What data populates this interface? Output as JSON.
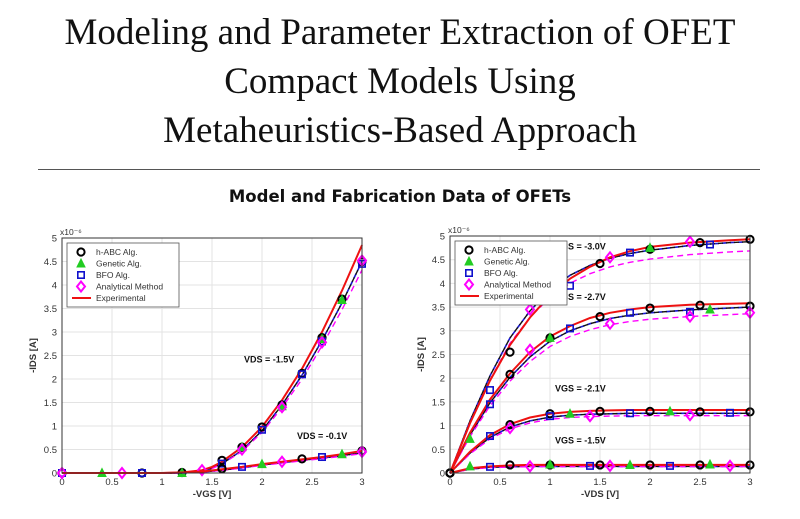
{
  "page": {
    "title_lines": [
      "Modeling and Parameter Extraction of OFET",
      "Compact Models Using",
      "Metaheuristics-Based Approach"
    ],
    "subtitle": "Model and Fabrication Data of OFETs"
  },
  "chart_data": [
    {
      "type": "line",
      "xlabel": "-VGS [V]",
      "ylabel": "-IDS [A]",
      "y_exponent": "x10⁻⁶",
      "xlim": [
        0,
        3
      ],
      "ylim": [
        0,
        5
      ],
      "xticks": [
        0,
        0.5,
        1,
        1.5,
        2,
        2.5,
        3
      ],
      "yticks": [
        0,
        0.5,
        1,
        1.5,
        2,
        2.5,
        3,
        3.5,
        4,
        4.5,
        5
      ],
      "grid": true,
      "legend": {
        "placement": "top-left",
        "entries": [
          {
            "label": "h-ABC Alg.",
            "marker": "circle",
            "color": "#000000"
          },
          {
            "label": "Genetic Alg.",
            "marker": "triangle",
            "color": "#22cc22"
          },
          {
            "label": "BFO Alg.",
            "marker": "square",
            "color": "#1010cc"
          },
          {
            "label": "Analytical Method",
            "marker": "diamond",
            "color": "#ff00ff"
          },
          {
            "label": "Experimental",
            "marker": "line",
            "color": "#ee1111"
          }
        ]
      },
      "annotations": [
        {
          "text": "VDS = -1.5V",
          "x": 1.82,
          "y": 2.35
        },
        {
          "text": "VDS = -0.1V",
          "x": 2.35,
          "y": 0.72
        }
      ],
      "curves": [
        {
          "group": "VDS = -1.5V",
          "experimental": {
            "x": [
              0,
              1.0,
              1.2,
              1.4,
              1.5,
              1.6,
              1.8,
              2.0,
              2.2,
              2.4,
              2.6,
              2.8,
              3.0
            ],
            "y": [
              0,
              0,
              0.01,
              0.06,
              0.13,
              0.24,
              0.55,
              0.98,
              1.55,
              2.22,
              3.0,
              3.88,
              4.85
            ]
          },
          "model_dashed": {
            "x": [
              0,
              1.0,
              1.2,
              1.4,
              1.5,
              1.6,
              1.8,
              2.0,
              2.2,
              2.4,
              2.6,
              2.8,
              3.0
            ],
            "y": [
              0,
              0,
              0.0,
              0.04,
              0.1,
              0.2,
              0.48,
              0.9,
              1.45,
              2.08,
              2.82,
              3.62,
              4.5
            ]
          },
          "habc": {
            "x": [
              0,
              0.8,
              1.2,
              1.6,
              1.8,
              2.0,
              2.2,
              2.4,
              2.6,
              2.8,
              3.0
            ],
            "y": [
              0,
              0,
              0.01,
              0.27,
              0.55,
              0.98,
              1.45,
              2.12,
              2.88,
              3.7,
              4.5
            ]
          },
          "genetic": {
            "x": [
              0.4,
              1.2,
              1.8,
              2.2,
              2.6,
              2.8
            ],
            "y": [
              0,
              0,
              0.55,
              1.42,
              2.85,
              3.68
            ]
          },
          "bfo": {
            "x": [
              0,
              0.8,
              1.6,
              2.0,
              2.4,
              2.6,
              3.0
            ],
            "y": [
              0,
              0,
              0.2,
              0.92,
              2.1,
              2.8,
              4.45
            ]
          },
          "analytical": {
            "x": [
              0,
              0.6,
              1.4,
              1.8,
              2.2,
              2.6,
              3.0
            ],
            "y": [
              0,
              0,
              0.06,
              0.5,
              1.4,
              2.78,
              4.52
            ]
          }
        },
        {
          "group": "VDS = -0.1V",
          "experimental": {
            "x": [
              0,
              1.0,
              1.2,
              1.4,
              1.6,
              1.8,
              2.0,
              2.2,
              2.4,
              2.6,
              2.8,
              3.0
            ],
            "y": [
              0,
              0,
              0.01,
              0.03,
              0.08,
              0.13,
              0.19,
              0.24,
              0.29,
              0.34,
              0.4,
              0.47
            ]
          },
          "model_dashed": {
            "x": [
              0,
              1.0,
              1.2,
              1.4,
              1.6,
              1.8,
              2.0,
              2.2,
              2.4,
              2.6,
              2.8,
              3.0
            ],
            "y": [
              0,
              0,
              0.0,
              0.02,
              0.06,
              0.11,
              0.17,
              0.22,
              0.27,
              0.32,
              0.37,
              0.43
            ]
          },
          "habc": {
            "x": [
              1.6,
              2.4,
              3.0
            ],
            "y": [
              0.09,
              0.3,
              0.47
            ]
          },
          "genetic": {
            "x": [
              2.0,
              2.8
            ],
            "y": [
              0.19,
              0.4
            ]
          },
          "bfo": {
            "x": [
              1.8,
              2.6
            ],
            "y": [
              0.13,
              0.34
            ]
          },
          "analytical": {
            "x": [
              2.2,
              3.0
            ],
            "y": [
              0.24,
              0.45
            ]
          }
        }
      ]
    },
    {
      "type": "line",
      "xlabel": "-VDS [V]",
      "ylabel": "-IDS [A]",
      "y_exponent": "x10⁻⁶",
      "xlim": [
        0,
        3
      ],
      "ylim": [
        0,
        5
      ],
      "xticks": [
        0,
        0.5,
        1,
        1.5,
        2,
        2.5,
        3
      ],
      "yticks": [
        0,
        0.5,
        1,
        1.5,
        2,
        2.5,
        3,
        3.5,
        4,
        4.5,
        5
      ],
      "grid": true,
      "legend": {
        "placement": "top-left",
        "entries": [
          {
            "label": "h-ABC Alg.",
            "marker": "circle",
            "color": "#000000"
          },
          {
            "label": "Genetic Alg.",
            "marker": "triangle",
            "color": "#22cc22"
          },
          {
            "label": "BFO Alg.",
            "marker": "square",
            "color": "#1010cc"
          },
          {
            "label": "Analytical Method",
            "marker": "diamond",
            "color": "#ff00ff"
          },
          {
            "label": "Experimental",
            "marker": "line",
            "color": "#ee1111"
          }
        ]
      },
      "annotations": [
        {
          "text": "VGS = -3.0V",
          "x": 1.05,
          "y": 4.72
        },
        {
          "text": "VGS = -2.7V",
          "x": 1.05,
          "y": 3.65
        },
        {
          "text": "VGS = -2.1V",
          "x": 1.05,
          "y": 1.72
        },
        {
          "text": "VGS = -1.5V",
          "x": 1.05,
          "y": 0.62
        }
      ],
      "curves": [
        {
          "group": "VGS = -3.0V",
          "experimental": {
            "x": [
              0,
              0.2,
              0.4,
              0.6,
              0.8,
              1.0,
              1.2,
              1.4,
              1.6,
              1.8,
              2.0,
              2.4,
              2.8,
              3.0
            ],
            "y": [
              0,
              1.05,
              1.95,
              2.7,
              3.28,
              3.75,
              4.1,
              4.35,
              4.55,
              4.68,
              4.77,
              4.86,
              4.91,
              4.93
            ]
          },
          "model_dashed": {
            "x": [
              0,
              0.2,
              0.4,
              0.6,
              0.8,
              1.0,
              1.2,
              1.4,
              1.6,
              1.8,
              2.0,
              2.4,
              2.8,
              3.0
            ],
            "y": [
              0,
              1.1,
              2.05,
              2.85,
              3.42,
              3.86,
              4.17,
              4.38,
              4.53,
              4.63,
              4.7,
              4.8,
              4.86,
              4.88
            ]
          },
          "habc": {
            "x": [
              0,
              0.6,
              1.0,
              1.5,
              2.0,
              2.5,
              3.0
            ],
            "y": [
              0,
              2.55,
              3.72,
              4.42,
              4.72,
              4.86,
              4.93
            ]
          },
          "genetic": {
            "x": [
              1.0,
              2.0
            ],
            "y": [
              3.7,
              4.75
            ]
          },
          "bfo": {
            "x": [
              0.4,
              1.2,
              1.8,
              2.6
            ],
            "y": [
              1.75,
              3.95,
              4.65,
              4.82
            ]
          },
          "analytical": {
            "x": [
              0.8,
              1.6,
              2.4
            ],
            "y": [
              3.45,
              4.55,
              4.88
            ]
          }
        },
        {
          "group": "VGS = -2.7V",
          "experimental": {
            "x": [
              0,
              0.2,
              0.4,
              0.6,
              0.8,
              1.0,
              1.2,
              1.4,
              1.6,
              1.8,
              2.0,
              2.4,
              2.8,
              3.0
            ],
            "y": [
              0,
              0.85,
              1.55,
              2.1,
              2.55,
              2.88,
              3.1,
              3.27,
              3.38,
              3.45,
              3.5,
              3.55,
              3.57,
              3.58
            ]
          },
          "model_dashed": {
            "x": [
              0,
              0.2,
              0.4,
              0.6,
              0.8,
              1.0,
              1.2,
              1.4,
              1.6,
              1.8,
              2.0,
              2.4,
              2.8,
              3.0
            ],
            "y": [
              0,
              0.8,
              1.48,
              2.02,
              2.45,
              2.78,
              3.0,
              3.15,
              3.26,
              3.33,
              3.38,
              3.44,
              3.48,
              3.5
            ]
          },
          "habc": {
            "x": [
              0,
              0.6,
              1.0,
              1.5,
              2.0,
              2.5,
              3.0
            ],
            "y": [
              0,
              2.08,
              2.85,
              3.3,
              3.48,
              3.54,
              3.52
            ]
          },
          "genetic": {
            "x": [
              1.0,
              2.6
            ],
            "y": [
              2.85,
              3.45
            ]
          },
          "bfo": {
            "x": [
              0.4,
              1.2,
              1.8,
              2.4
            ],
            "y": [
              1.45,
              3.05,
              3.38,
              3.4
            ]
          },
          "analytical": {
            "x": [
              0.8,
              1.6,
              2.4,
              3.0
            ],
            "y": [
              2.6,
              3.15,
              3.3,
              3.38
            ]
          }
        },
        {
          "group": "VGS = -2.1V",
          "experimental": {
            "x": [
              0,
              0.2,
              0.4,
              0.6,
              0.8,
              1.0,
              1.2,
              1.4,
              1.6,
              1.8,
              2.0,
              2.4,
              2.8,
              3.0
            ],
            "y": [
              0,
              0.45,
              0.8,
              1.03,
              1.17,
              1.25,
              1.29,
              1.31,
              1.32,
              1.33,
              1.33,
              1.33,
              1.33,
              1.33
            ]
          },
          "model_dashed": {
            "x": [
              0,
              0.2,
              0.4,
              0.6,
              0.8,
              1.0,
              1.2,
              1.4,
              1.6,
              1.8,
              2.0,
              2.4,
              2.8,
              3.0
            ],
            "y": [
              0,
              0.42,
              0.75,
              0.97,
              1.1,
              1.18,
              1.22,
              1.24,
              1.25,
              1.26,
              1.26,
              1.26,
              1.26,
              1.26
            ]
          },
          "habc": {
            "x": [
              0,
              0.6,
              1.0,
              1.5,
              2.0,
              2.5,
              3.0
            ],
            "y": [
              0,
              1.02,
              1.25,
              1.3,
              1.3,
              1.29,
              1.29
            ]
          },
          "genetic": {
            "x": [
              0.2,
              1.2,
              2.2
            ],
            "y": [
              0.72,
              1.25,
              1.3
            ]
          },
          "bfo": {
            "x": [
              0.4,
              1.0,
              1.8,
              2.8
            ],
            "y": [
              0.78,
              1.2,
              1.26,
              1.27
            ]
          },
          "analytical": {
            "x": [
              0.6,
              1.4,
              2.4
            ],
            "y": [
              0.95,
              1.2,
              1.22
            ]
          }
        },
        {
          "group": "VGS = -1.5V",
          "experimental": {
            "x": [
              0,
              0.2,
              0.4,
              0.6,
              0.8,
              1.0,
              1.4,
              2.0,
              2.5,
              3.0
            ],
            "y": [
              0,
              0.1,
              0.14,
              0.16,
              0.17,
              0.17,
              0.17,
              0.17,
              0.17,
              0.17
            ]
          },
          "model_dashed": {
            "x": [
              0,
              0.2,
              0.4,
              0.6,
              0.8,
              1.0,
              1.4,
              2.0,
              2.5,
              3.0
            ],
            "y": [
              0,
              0.08,
              0.12,
              0.13,
              0.14,
              0.14,
              0.14,
              0.14,
              0.14,
              0.14
            ]
          },
          "habc": {
            "x": [
              0,
              0.6,
              1.0,
              1.5,
              2.0,
              2.5,
              3.0
            ],
            "y": [
              0,
              0.17,
              0.17,
              0.17,
              0.17,
              0.17,
              0.17
            ]
          },
          "genetic": {
            "x": [
              0.2,
              1.0,
              1.8,
              2.6
            ],
            "y": [
              0.14,
              0.18,
              0.17,
              0.18
            ]
          },
          "bfo": {
            "x": [
              0.4,
              1.4,
              2.2
            ],
            "y": [
              0.13,
              0.15,
              0.15
            ]
          },
          "analytical": {
            "x": [
              0.8,
              1.6,
              2.8
            ],
            "y": [
              0.14,
              0.15,
              0.15
            ]
          }
        }
      ]
    }
  ]
}
